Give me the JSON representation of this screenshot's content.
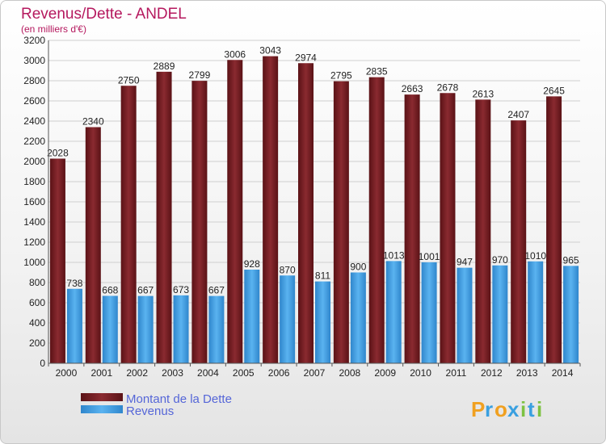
{
  "header": {
    "title": "Revenus/Dette - ANDEL",
    "subtitle": "(en milliers d'€)"
  },
  "logo": {
    "parts": [
      {
        "text": "P",
        "color": "#f0a020"
      },
      {
        "text": "r",
        "color": "#3aa0e0"
      },
      {
        "text": "o",
        "color": "#f0a020"
      },
      {
        "text": "x",
        "color": "#3aa0e0"
      },
      {
        "text": "i",
        "color": "#7dc242"
      },
      {
        "text": "t",
        "color": "#3aa0e0"
      },
      {
        "text": "i",
        "color": "#7dc242"
      }
    ]
  },
  "colors": {
    "debt": "#7a1f24",
    "revenue": "#4aa3e6"
  },
  "chart_data": {
    "type": "bar",
    "categories": [
      "2000",
      "2001",
      "2002",
      "2003",
      "2004",
      "2005",
      "2006",
      "2007",
      "2008",
      "2009",
      "2010",
      "2011",
      "2012",
      "2013",
      "2014"
    ],
    "series": [
      {
        "name": "Montant de la Dette",
        "values": [
          2028,
          2340,
          2750,
          2889,
          2799,
          3006,
          3043,
          2974,
          2795,
          2835,
          2663,
          2678,
          2613,
          2407,
          2645
        ]
      },
      {
        "name": "Revenus",
        "values": [
          738,
          668,
          667,
          673,
          667,
          928,
          870,
          811,
          900,
          1013,
          1001,
          947,
          970,
          1010,
          965
        ]
      }
    ],
    "ylim": [
      0,
      3200
    ],
    "yticks": [
      0,
      200,
      400,
      600,
      800,
      1000,
      1200,
      1400,
      1600,
      1800,
      2000,
      2200,
      2400,
      2600,
      2800,
      3000,
      3200
    ],
    "grid": true,
    "legend_position": "bottom-left"
  }
}
